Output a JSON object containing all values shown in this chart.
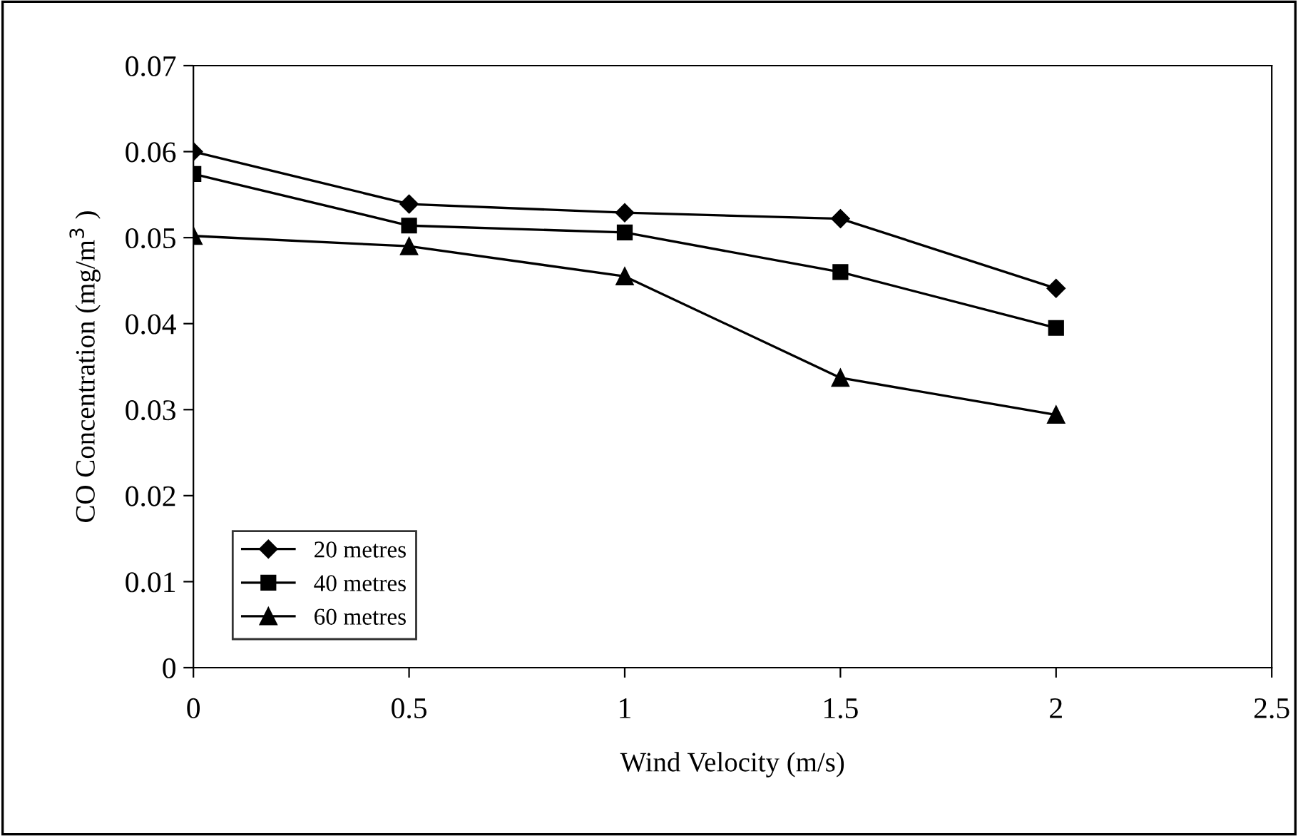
{
  "chart_data": {
    "type": "line",
    "xlabel": "Wind Velocity (m/s)",
    "ylabel": "CO Concentration (mg/m$^{3}$ )",
    "x": [
      0,
      0.5,
      1,
      1.5,
      2
    ],
    "series": [
      {
        "name": "20 metres",
        "color": "#000000",
        "marker": "diamond",
        "values": [
          0.06,
          0.0539,
          0.0529,
          0.0522,
          0.0441
        ]
      },
      {
        "name": "40 metres",
        "color": "#000000",
        "marker": "square",
        "values": [
          0.0574,
          0.0514,
          0.0506,
          0.046,
          0.0395
        ]
      },
      {
        "name": "60 metres",
        "color": "#000000",
        "marker": "triangle",
        "values": [
          0.0502,
          0.049,
          0.0455,
          0.0337,
          0.0294
        ]
      }
    ],
    "xlim": [
      0,
      2.5
    ],
    "xticks": [
      0,
      0.5,
      1,
      1.5,
      2,
      2.5
    ],
    "ylim": [
      0,
      0.07
    ],
    "yticks": [
      0,
      0.01,
      0.02,
      0.03,
      0.04,
      0.05,
      0.06,
      0.07
    ],
    "grid": false,
    "legend": "bottom left",
    "line_style": "solid"
  }
}
